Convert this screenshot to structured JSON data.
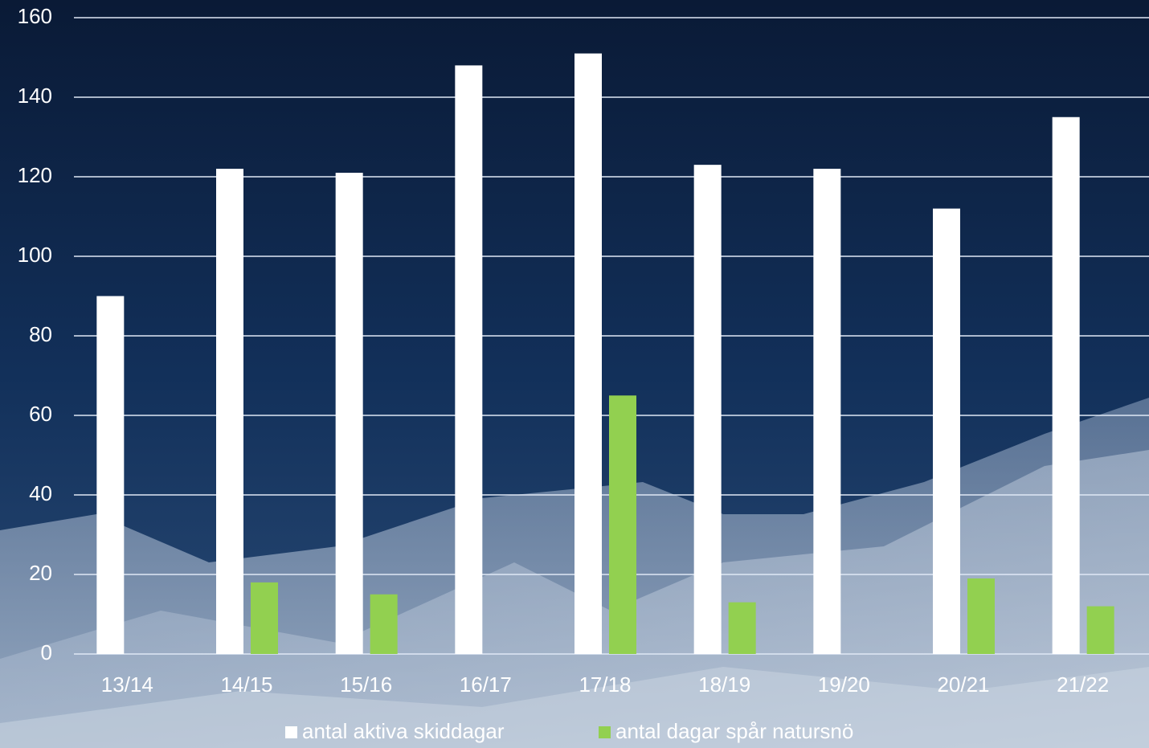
{
  "chart_data": {
    "type": "bar",
    "categories": [
      "13/14",
      "14/15",
      "15/16",
      "16/17",
      "17/18",
      "18/19",
      "19/20",
      "20/21",
      "21/22"
    ],
    "series": [
      {
        "name": "antal aktiva skiddagar",
        "color": "#ffffff",
        "values": [
          90,
          122,
          121,
          148,
          151,
          123,
          122,
          112,
          135
        ]
      },
      {
        "name": "antal dagar spår natursnö",
        "color": "#92d050",
        "values": [
          0,
          18,
          15,
          0,
          65,
          13,
          0,
          19,
          12
        ]
      }
    ],
    "ylim": [
      0,
      160
    ],
    "yticks": [
      0,
      20,
      40,
      60,
      80,
      100,
      120,
      140,
      160
    ],
    "grid": true,
    "legend": "bottom"
  }
}
